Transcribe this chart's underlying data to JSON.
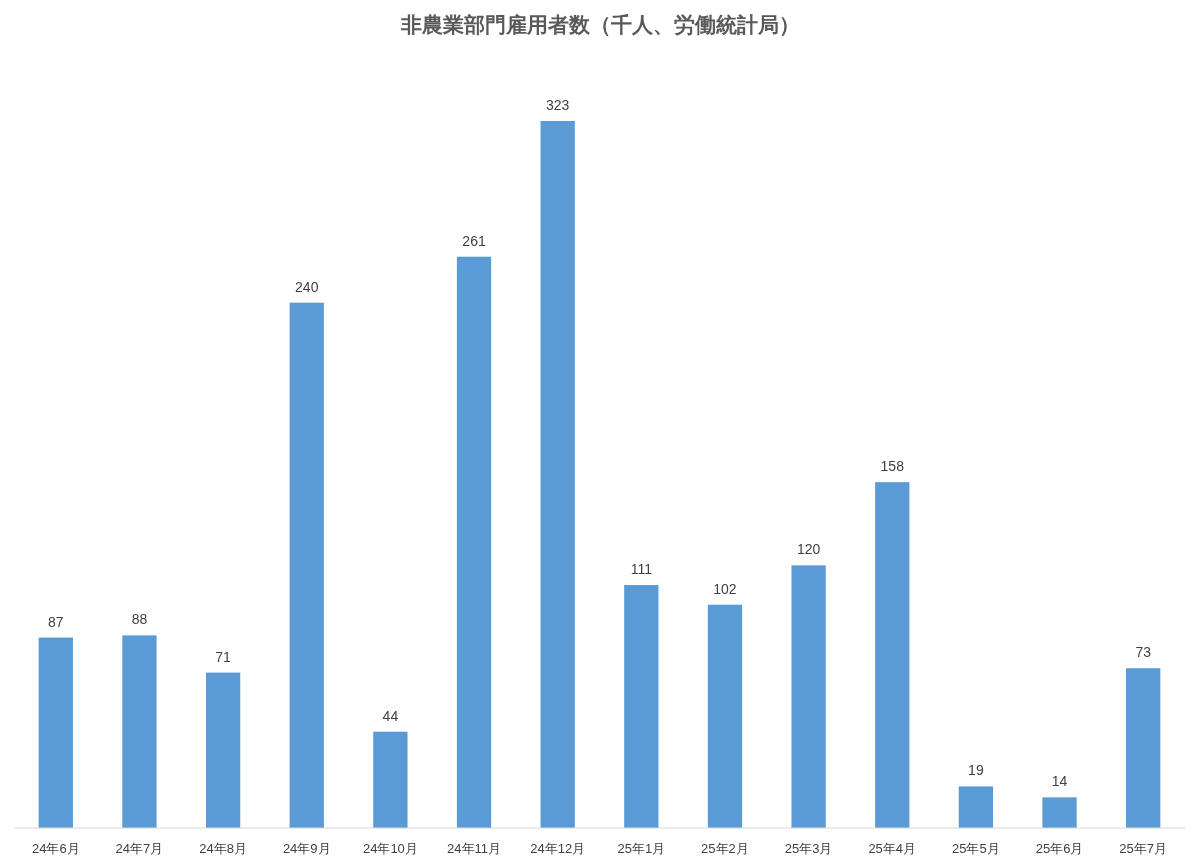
{
  "chart_data": {
    "type": "bar",
    "title": "非農業部門雇用者数（千人、労働統計局）",
    "categories": [
      "24年6月",
      "24年7月",
      "24年8月",
      "24年9月",
      "24年10月",
      "24年11月",
      "24年12月",
      "25年1月",
      "25年2月",
      "25年3月",
      "25年4月",
      "25年5月",
      "25年6月",
      "25年7月"
    ],
    "values": [
      87,
      88,
      71,
      240,
      44,
      261,
      323,
      111,
      102,
      120,
      158,
      19,
      14,
      73
    ],
    "color": "#5b9bd5",
    "data_labels": true
  }
}
